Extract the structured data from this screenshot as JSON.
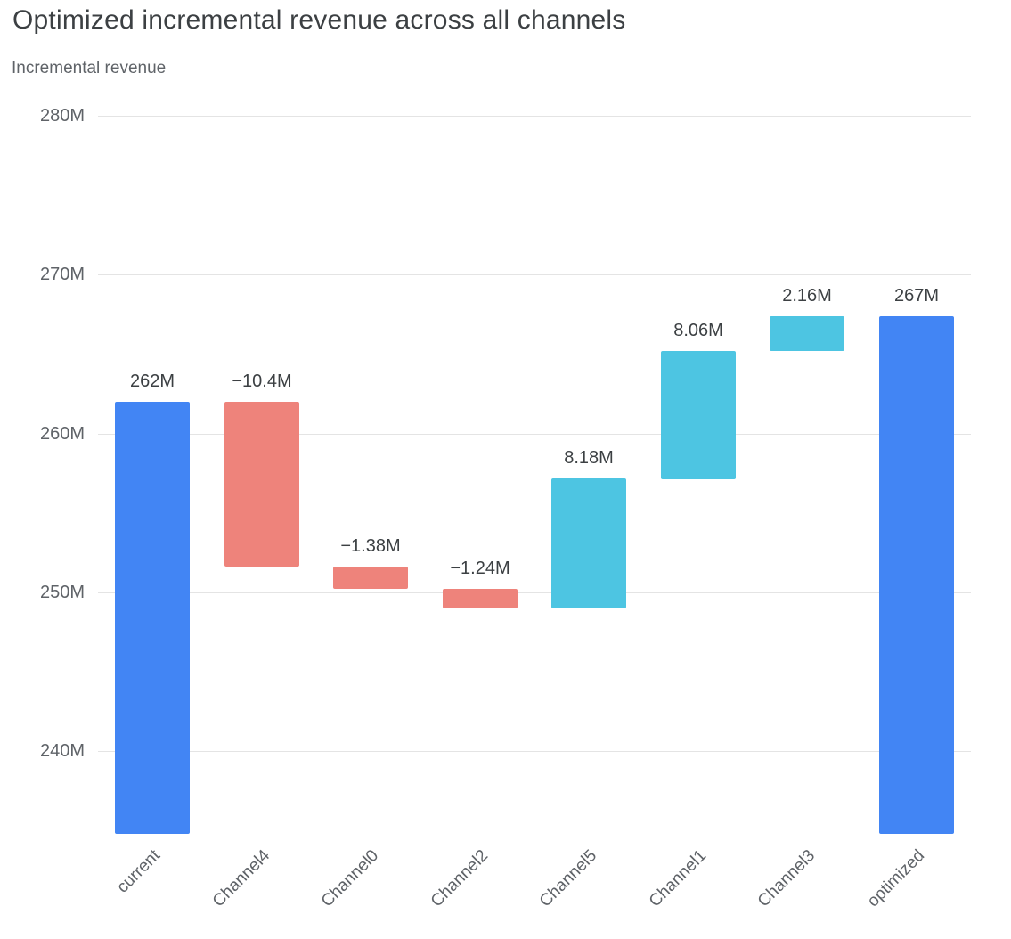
{
  "header": {
    "title": "Optimized incremental revenue across all channels",
    "subtitle": "Incremental revenue"
  },
  "chart_data": {
    "type": "bar",
    "subtype": "waterfall",
    "title": "Optimized incremental revenue across all channels",
    "ylabel": "Incremental revenue",
    "unit": "M",
    "legend": "none",
    "categories": [
      "current",
      "Channel4",
      "Channel0",
      "Channel2",
      "Channel5",
      "Channel1",
      "Channel3",
      "optimized"
    ],
    "bars": [
      {
        "category": "current",
        "kind": "total",
        "value": 262,
        "start": null,
        "end": 262,
        "label": "262M"
      },
      {
        "category": "Channel4",
        "kind": "decrease",
        "value": -10.4,
        "start": 262,
        "end": 251.6,
        "label": "−10.4M"
      },
      {
        "category": "Channel0",
        "kind": "decrease",
        "value": -1.38,
        "start": 251.6,
        "end": 250.22,
        "label": "−1.38M"
      },
      {
        "category": "Channel2",
        "kind": "decrease",
        "value": -1.24,
        "start": 250.22,
        "end": 248.98,
        "label": "−1.24M"
      },
      {
        "category": "Channel5",
        "kind": "increase",
        "value": 8.18,
        "start": 248.98,
        "end": 257.16,
        "label": "8.18M"
      },
      {
        "category": "Channel1",
        "kind": "increase",
        "value": 8.06,
        "start": 257.16,
        "end": 265.22,
        "label": "8.06M"
      },
      {
        "category": "Channel3",
        "kind": "increase",
        "value": 2.16,
        "start": 265.22,
        "end": 267.38,
        "label": "2.16M"
      },
      {
        "category": "optimized",
        "kind": "total",
        "value": 267.38,
        "start": null,
        "end": 267.38,
        "label": "267M"
      }
    ],
    "y_axis": {
      "min": 234.8,
      "max": 280,
      "grid": true,
      "ticks": [
        {
          "value": 240,
          "label": "240M"
        },
        {
          "value": 250,
          "label": "250M"
        },
        {
          "value": 260,
          "label": "260M"
        },
        {
          "value": 270,
          "label": "270M"
        },
        {
          "value": 280,
          "label": "280M"
        }
      ]
    },
    "x_axis": {
      "label_rotation_deg": -45
    },
    "colors": {
      "total": "#4285F4",
      "increase": "#4DC5E2",
      "decrease": "#EE837B",
      "grid": "#e4e4e4",
      "label_text": "#3c4043",
      "axis_text": "#5f6368"
    }
  }
}
